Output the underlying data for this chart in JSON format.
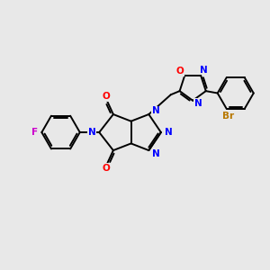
{
  "background_color": "#e8e8e8",
  "bond_color": "#000000",
  "bond_width": 1.4,
  "figsize": [
    3.0,
    3.0
  ],
  "dpi": 100,
  "atom_labels": {
    "F": {
      "color": "#cc00cc",
      "fontsize": 7.5,
      "fontweight": "bold"
    },
    "N": {
      "color": "#0000ff",
      "fontsize": 7.5,
      "fontweight": "bold"
    },
    "O": {
      "color": "#ff0000",
      "fontsize": 7.5,
      "fontweight": "bold"
    },
    "Br": {
      "color": "#b87800",
      "fontsize": 7.5,
      "fontweight": "bold"
    }
  },
  "scale": 1.0
}
